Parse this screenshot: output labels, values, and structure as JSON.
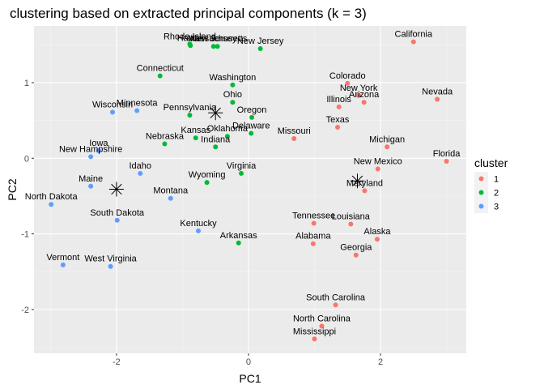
{
  "chart_data": {
    "type": "scatter",
    "title": "clustering based on extracted principal components (k = 3)",
    "xlabel": "PC1",
    "ylabel": "PC2",
    "xlim": [
      -3.25,
      3.3
    ],
    "ylim": [
      -2.58,
      1.75
    ],
    "x_ticks": [
      -2,
      0,
      2
    ],
    "y_ticks": [
      -2,
      -1,
      0,
      1
    ],
    "grid": true,
    "legend": {
      "title": "cluster",
      "position": "right",
      "entries": [
        {
          "label": "1",
          "color": "#F8766D"
        },
        {
          "label": "2",
          "color": "#00BA38"
        },
        {
          "label": "3",
          "color": "#619CFF"
        }
      ]
    },
    "cluster_colors": {
      "1": "#F8766D",
      "2": "#00BA38",
      "3": "#619CFF"
    },
    "centroids": [
      {
        "cluster": "1",
        "x": 1.65,
        "y": -0.3
      },
      {
        "cluster": "2",
        "x": -0.5,
        "y": 0.6
      },
      {
        "cluster": "3",
        "x": -2.0,
        "y": -0.41
      }
    ],
    "points": [
      {
        "label": "California",
        "x": 2.5,
        "y": 1.54,
        "cluster": "1"
      },
      {
        "label": "Nevada",
        "x": 2.86,
        "y": 0.78,
        "cluster": "1"
      },
      {
        "label": "Colorado",
        "x": 1.5,
        "y": 0.99,
        "cluster": "1"
      },
      {
        "label": "New York",
        "x": 1.67,
        "y": 0.83,
        "cluster": "1"
      },
      {
        "label": "Arizona",
        "x": 1.75,
        "y": 0.74,
        "cluster": "1"
      },
      {
        "label": "Illinois",
        "x": 1.37,
        "y": 0.68,
        "cluster": "1"
      },
      {
        "label": "Texas",
        "x": 1.35,
        "y": 0.41,
        "cluster": "1"
      },
      {
        "label": "Missouri",
        "x": 0.69,
        "y": 0.26,
        "cluster": "1"
      },
      {
        "label": "Michigan",
        "x": 2.1,
        "y": 0.15,
        "cluster": "1"
      },
      {
        "label": "Florida",
        "x": 3.0,
        "y": -0.04,
        "cluster": "1"
      },
      {
        "label": "New Mexico",
        "x": 1.96,
        "y": -0.14,
        "cluster": "1"
      },
      {
        "label": "Maryland",
        "x": 1.76,
        "y": -0.43,
        "cluster": "1"
      },
      {
        "label": "Tennessee",
        "x": 0.99,
        "y": -0.86,
        "cluster": "1"
      },
      {
        "label": "Louisiana",
        "x": 1.55,
        "y": -0.87,
        "cluster": "1"
      },
      {
        "label": "Alaska",
        "x": 1.95,
        "y": -1.07,
        "cluster": "1"
      },
      {
        "label": "Alabama",
        "x": 0.98,
        "y": -1.13,
        "cluster": "1"
      },
      {
        "label": "Georgia",
        "x": 1.63,
        "y": -1.28,
        "cluster": "1"
      },
      {
        "label": "South Carolina",
        "x": 1.32,
        "y": -1.94,
        "cluster": "1"
      },
      {
        "label": "North Carolina",
        "x": 1.11,
        "y": -2.22,
        "cluster": "1"
      },
      {
        "label": "Mississippi",
        "x": 1.0,
        "y": -2.39,
        "cluster": "1"
      },
      {
        "label": "Hawaii",
        "x": -0.88,
        "y": 1.49,
        "cluster": "2"
      },
      {
        "label": "Rhode Island",
        "x": -0.89,
        "y": 1.51,
        "cluster": "2"
      },
      {
        "label": "New Jersey",
        "x": -0.53,
        "y": 1.48,
        "cluster": "2"
      },
      {
        "label": "Massachusetts",
        "x": -0.47,
        "y": 1.48,
        "cluster": "2"
      },
      {
        "label": "New Jersey",
        "x": 0.18,
        "y": 1.45,
        "cluster": "2"
      },
      {
        "label": "Connecticut",
        "x": -1.34,
        "y": 1.09,
        "cluster": "2"
      },
      {
        "label": "Washington",
        "x": -0.24,
        "y": 0.97,
        "cluster": "2"
      },
      {
        "label": "Ohio",
        "x": -0.24,
        "y": 0.74,
        "cluster": "2"
      },
      {
        "label": "Pennsylvania",
        "x": -0.89,
        "y": 0.57,
        "cluster": "2"
      },
      {
        "label": "Oregon",
        "x": 0.05,
        "y": 0.54,
        "cluster": "2"
      },
      {
        "label": "Delaware",
        "x": 0.04,
        "y": 0.33,
        "cluster": "2"
      },
      {
        "label": "Oklahoma",
        "x": -0.32,
        "y": 0.29,
        "cluster": "2"
      },
      {
        "label": "Kansas",
        "x": -0.8,
        "y": 0.27,
        "cluster": "2"
      },
      {
        "label": "Indiana",
        "x": -0.5,
        "y": 0.15,
        "cluster": "2"
      },
      {
        "label": "Nebraska",
        "x": -1.27,
        "y": 0.19,
        "cluster": "2"
      },
      {
        "label": "Virginia",
        "x": -0.11,
        "y": -0.2,
        "cluster": "2"
      },
      {
        "label": "Wyoming",
        "x": -0.63,
        "y": -0.32,
        "cluster": "2"
      },
      {
        "label": "Arkansas",
        "x": -0.15,
        "y": -1.12,
        "cluster": "2"
      },
      {
        "label": "Wisconsin",
        "x": -2.06,
        "y": 0.61,
        "cluster": "3"
      },
      {
        "label": "Minnesota",
        "x": -1.69,
        "y": 0.63,
        "cluster": "3"
      },
      {
        "label": "Iowa",
        "x": -2.27,
        "y": 0.1,
        "cluster": "3"
      },
      {
        "label": "New Hampshire",
        "x": -2.39,
        "y": 0.02,
        "cluster": "3"
      },
      {
        "label": "Idaho",
        "x": -1.64,
        "y": -0.2,
        "cluster": "3"
      },
      {
        "label": "Maine",
        "x": -2.39,
        "y": -0.37,
        "cluster": "3"
      },
      {
        "label": "North Dakota",
        "x": -2.99,
        "y": -0.61,
        "cluster": "3"
      },
      {
        "label": "Montana",
        "x": -1.18,
        "y": -0.53,
        "cluster": "3"
      },
      {
        "label": "South Dakota",
        "x": -1.99,
        "y": -0.82,
        "cluster": "3"
      },
      {
        "label": "Kentucky",
        "x": -0.76,
        "y": -0.96,
        "cluster": "3"
      },
      {
        "label": "Vermont",
        "x": -2.81,
        "y": -1.41,
        "cluster": "3"
      },
      {
        "label": "West Virginia",
        "x": -2.09,
        "y": -1.43,
        "cluster": "3"
      }
    ]
  }
}
